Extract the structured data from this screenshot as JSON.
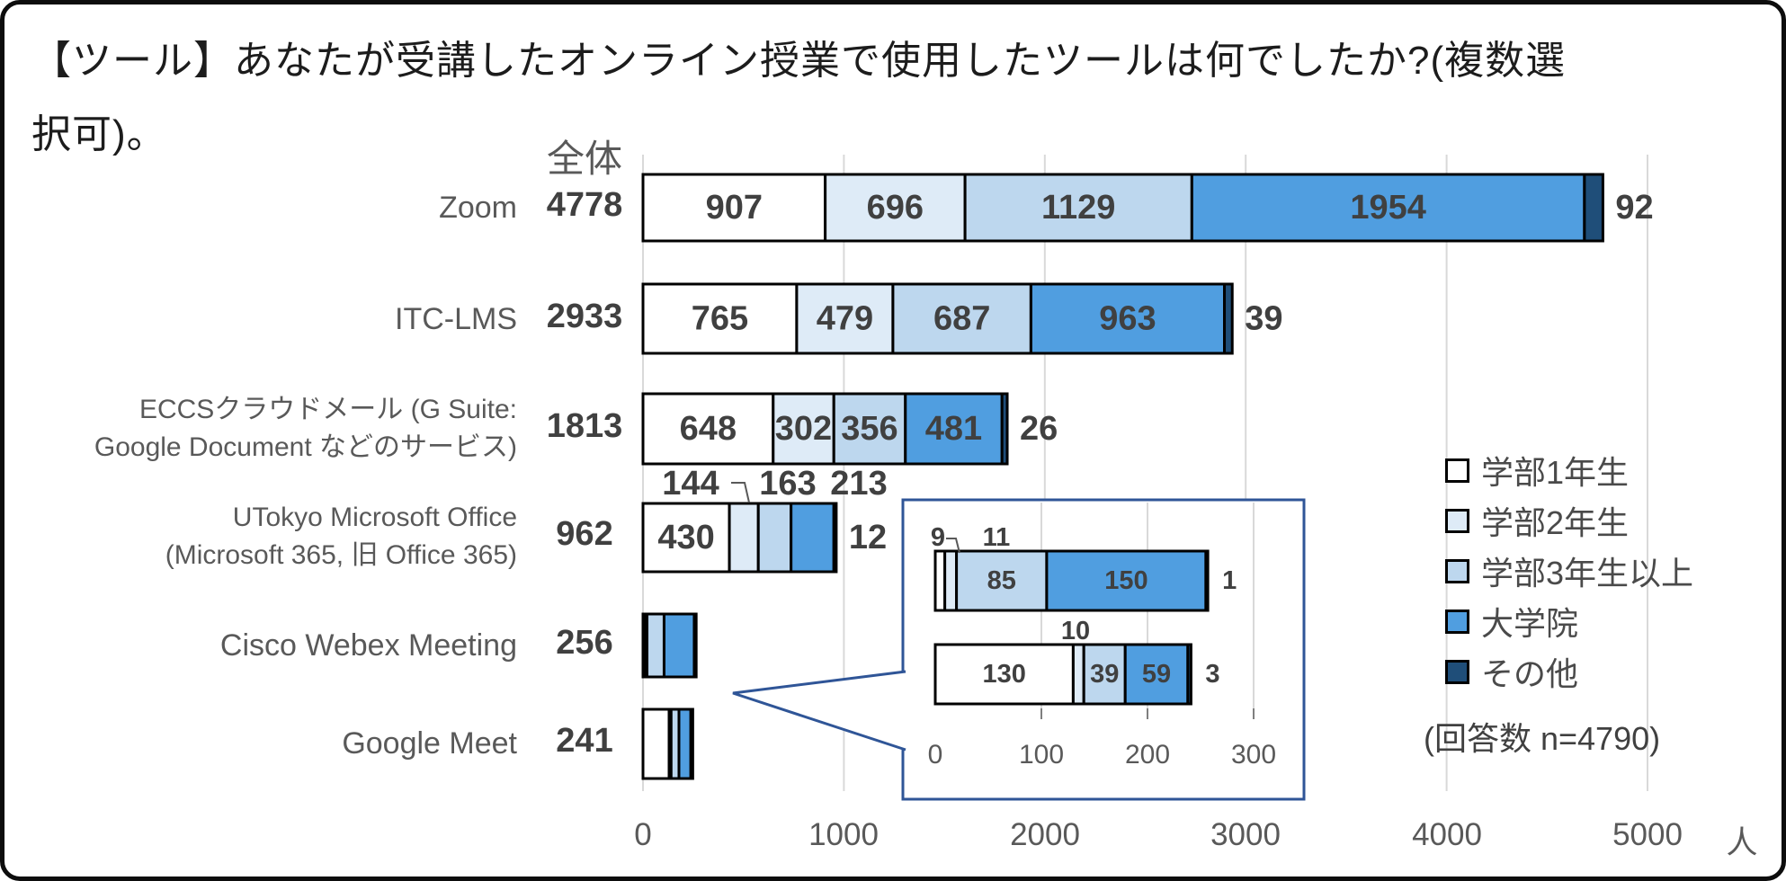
{
  "title": {
    "line1": "【ツール】あなたが受講したオンライン授業で使用したツールは何でしたか?(複数選",
    "line2": "択可)。"
  },
  "colors": {
    "series": [
      "#FFFFFF",
      "#DEEBF7",
      "#BDD7EE",
      "#509EE0",
      "#1F4E79"
    ],
    "bar_border": "#000000",
    "grid": "#D9D9D9",
    "inset_border": "#2F5597",
    "leader": "#595959",
    "value_text": "#404040",
    "axis_text": "#595959"
  },
  "chart_data": {
    "type": "bar",
    "orientation": "horizontal",
    "stacked": true,
    "total_header": "全体",
    "series_names": [
      "学部1年生",
      "学部2年生",
      "学部3年生以上",
      "大学院",
      "その他"
    ],
    "rows": [
      {
        "label_lines": [
          "Zoom"
        ],
        "total": 4778,
        "values": [
          907,
          696,
          1129,
          1954,
          92
        ]
      },
      {
        "label_lines": [
          "ITC-LMS"
        ],
        "total": 2933,
        "values": [
          765,
          479,
          687,
          963,
          39
        ]
      },
      {
        "label_lines": [
          "ECCSクラウドメール (G Suite:",
          "Google Document などのサービス)"
        ],
        "total": 1813,
        "values": [
          648,
          302,
          356,
          481,
          26
        ]
      },
      {
        "label_lines": [
          "UTokyo Microsoft Office",
          "(Microsoft 365, 旧 Office 365)"
        ],
        "total": 962,
        "values": [
          430,
          144,
          163,
          213,
          12
        ]
      },
      {
        "label_lines": [
          "Cisco Webex Meeting"
        ],
        "total": 256,
        "values": [
          9,
          11,
          85,
          150,
          1
        ]
      },
      {
        "label_lines": [
          "Google Meet"
        ],
        "total": 241,
        "values": [
          130,
          10,
          39,
          59,
          3
        ]
      }
    ],
    "x_ticks": [
      0,
      1000,
      2000,
      3000,
      4000,
      5000
    ],
    "x_unit": "人",
    "xlim": [
      0,
      5000
    ],
    "grid": true,
    "legend_position": "right",
    "legend": [
      "学部1年生",
      "学部2年生",
      "学部3年生以上",
      "大学院",
      "その他"
    ],
    "note": "(回答数 n=4790)",
    "inset": {
      "description": "magnified view of Cisco Webex Meeting and Google Meet bars",
      "row_indexes": [
        4,
        5
      ],
      "x_ticks": [
        0,
        100,
        200,
        300
      ],
      "xlim": [
        0,
        330
      ]
    }
  }
}
